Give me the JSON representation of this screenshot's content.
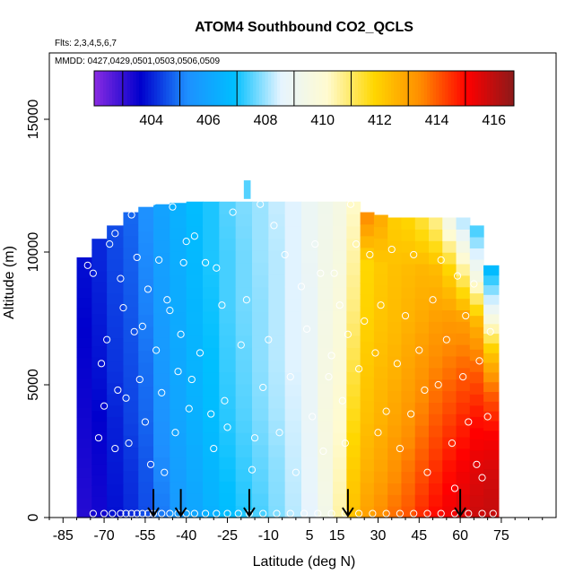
{
  "chart_data": {
    "type": "heatmap",
    "title": "ATOM4 Southbound CO2_QCLS",
    "subtitle_flights": "Flts: 2,3,4,5,6,7",
    "subtitle_dates": "MMDD: 0427,0429,0501,0503,0506,0509",
    "xlabel": "Latitude (deg N)",
    "ylabel": "Altitude (m)",
    "xlim": [
      -90,
      95
    ],
    "ylim": [
      0,
      17500
    ],
    "x_ticks": [
      -85,
      -70,
      -55,
      -40,
      -25,
      -10,
      5,
      15,
      30,
      45,
      60,
      75
    ],
    "x_tick_labels": [
      "-85",
      "-70",
      "-55",
      "-40",
      "-25",
      "-10",
      "5",
      "15",
      "30",
      "45",
      "60",
      "75"
    ],
    "y_ticks": [
      0,
      5000,
      10000,
      15000
    ],
    "y_tick_labels": [
      "0",
      "5000",
      "10000",
      "15000"
    ],
    "colorbar": {
      "range": [
        402,
        416.7
      ],
      "ticks": [
        404,
        406,
        408,
        410,
        412,
        414,
        416
      ],
      "tick_labels": [
        "404",
        "406",
        "408",
        "410",
        "412",
        "414",
        "416"
      ],
      "colors": [
        "#8a2be2",
        "#0000cd",
        "#1e90ff",
        "#00bfff",
        "#e6f4ff",
        "#fffbd0",
        "#ffd700",
        "#ff8c00",
        "#ff0000",
        "#8b1a1a"
      ]
    },
    "profile_markers_latitude": [
      -52,
      -42,
      -17,
      19,
      60
    ],
    "columns": [
      {
        "lat": -77,
        "top": 9800,
        "values": [
          403.2,
          403.3,
          403.4,
          403.5,
          403.6,
          403.7,
          403.8
        ]
      },
      {
        "lat": -72,
        "top": 10500,
        "values": [
          403.4,
          403.5,
          403.6,
          403.8,
          403.9,
          404.0,
          404.1
        ]
      },
      {
        "lat": -66,
        "top": 11000,
        "values": [
          403.8,
          403.9,
          404.0,
          404.2,
          404.3,
          404.4,
          404.5
        ]
      },
      {
        "lat": -60,
        "top": 11500,
        "values": [
          404.1,
          404.2,
          404.4,
          404.5,
          404.6,
          404.7,
          404.8
        ]
      },
      {
        "lat": -55,
        "top": 11700,
        "values": [
          404.5,
          404.6,
          404.8,
          404.9,
          405.1,
          405.2,
          405.3
        ]
      },
      {
        "lat": -49,
        "top": 11800,
        "values": [
          405.0,
          405.2,
          405.4,
          405.6,
          405.7,
          405.8,
          405.9
        ]
      },
      {
        "lat": -43,
        "top": 11850,
        "values": [
          405.6,
          405.8,
          406.0,
          406.1,
          406.2,
          406.3,
          406.4
        ]
      },
      {
        "lat": -37,
        "top": 11900,
        "values": [
          406.0,
          406.2,
          406.4,
          406.5,
          406.6,
          406.7,
          406.8
        ]
      },
      {
        "lat": -31,
        "top": 11900,
        "values": [
          406.4,
          406.6,
          406.8,
          406.9,
          407.0,
          407.1,
          407.1
        ]
      },
      {
        "lat": -25,
        "top": 11900,
        "values": [
          406.8,
          407.0,
          407.2,
          407.3,
          407.4,
          407.4,
          407.5
        ]
      },
      {
        "lat": -19,
        "top": 11900,
        "values": [
          407.1,
          407.3,
          407.5,
          407.6,
          407.7,
          407.7,
          407.8
        ]
      },
      {
        "lat": -13,
        "top": 11900,
        "values": [
          407.4,
          407.6,
          407.8,
          407.9,
          407.9,
          408.0,
          408.0
        ]
      },
      {
        "lat": -7,
        "top": 11900,
        "values": [
          407.8,
          407.9,
          408.1,
          408.2,
          408.2,
          408.2,
          408.3
        ]
      },
      {
        "lat": -1,
        "top": 11900,
        "values": [
          408.2,
          408.3,
          408.4,
          408.5,
          408.5,
          408.5,
          408.5
        ]
      },
      {
        "lat": 5,
        "top": 11900,
        "values": [
          408.6,
          408.7,
          408.8,
          408.8,
          408.8,
          408.9,
          408.9
        ]
      },
      {
        "lat": 11,
        "top": 11900,
        "values": [
          409.3,
          409.5,
          409.6,
          409.5,
          409.4,
          409.3,
          409.2
        ]
      },
      {
        "lat": 16,
        "top": 11900,
        "values": [
          410.5,
          410.3,
          410.1,
          409.9,
          409.8,
          409.6,
          409.5
        ]
      },
      {
        "lat": 21,
        "top": 11900,
        "values": [
          412.3,
          412.0,
          411.6,
          411.2,
          410.8,
          410.5,
          410.2
        ]
      },
      {
        "lat": 26,
        "top": 11500,
        "values": [
          413.0,
          412.6,
          412.3,
          412.1,
          411.9,
          411.8,
          413.5
        ]
      },
      {
        "lat": 31,
        "top": 11400,
        "values": [
          413.4,
          412.9,
          412.6,
          412.4,
          412.2,
          412.1,
          412.8
        ]
      },
      {
        "lat": 36,
        "top": 11300,
        "values": [
          413.8,
          413.3,
          412.9,
          412.6,
          412.4,
          412.3,
          412.0
        ]
      },
      {
        "lat": 41,
        "top": 11300,
        "values": [
          414.1,
          413.7,
          413.2,
          412.9,
          412.6,
          412.4,
          411.8
        ]
      },
      {
        "lat": 46,
        "top": 11300,
        "values": [
          414.6,
          414.1,
          413.6,
          413.2,
          412.8,
          412.5,
          411.3
        ]
      },
      {
        "lat": 51,
        "top": 11300,
        "values": [
          415.0,
          414.5,
          414.0,
          413.5,
          413.0,
          412.4,
          410.6
        ]
      },
      {
        "lat": 56,
        "top": 11300,
        "values": [
          415.3,
          414.9,
          414.3,
          413.7,
          413.1,
          411.8,
          409.2
        ]
      },
      {
        "lat": 61,
        "top": 11300,
        "values": [
          415.6,
          415.2,
          414.6,
          413.9,
          413.0,
          410.5,
          408.0
        ]
      },
      {
        "lat": 66,
        "top": 11000,
        "values": [
          415.8,
          415.5,
          414.9,
          414.0,
          412.6,
          409.4,
          407.2
        ]
      },
      {
        "lat": 71,
        "top": 9500,
        "values": [
          415.9,
          415.7,
          415.1,
          413.9,
          412.0,
          408.8,
          406.5
        ]
      }
    ],
    "observations": [
      [
        -76,
        9500
      ],
      [
        -74,
        9200
      ],
      [
        -72,
        3000
      ],
      [
        -71,
        5800
      ],
      [
        -70,
        4200
      ],
      [
        -69,
        6700
      ],
      [
        -68,
        10300
      ],
      [
        -66,
        10700
      ],
      [
        -66,
        2600
      ],
      [
        -65,
        4800
      ],
      [
        -64,
        9000
      ],
      [
        -63,
        7900
      ],
      [
        -62,
        4500
      ],
      [
        -61,
        2800
      ],
      [
        -60,
        11400
      ],
      [
        -59,
        7000
      ],
      [
        -58,
        9800
      ],
      [
        -57,
        5200
      ],
      [
        -56,
        7200
      ],
      [
        -55,
        3600
      ],
      [
        -54,
        8600
      ],
      [
        -53,
        2000
      ],
      [
        -52,
        11900
      ],
      [
        -51,
        6300
      ],
      [
        -50,
        9700
      ],
      [
        -49,
        4700
      ],
      [
        -48,
        1700
      ],
      [
        -47,
        8200
      ],
      [
        -46,
        7800
      ],
      [
        -45,
        11700
      ],
      [
        -44,
        3200
      ],
      [
        -43,
        5500
      ],
      [
        -42,
        6900
      ],
      [
        -41,
        9600
      ],
      [
        -40,
        10400
      ],
      [
        -39,
        4100
      ],
      [
        -38,
        5200
      ],
      [
        -37,
        10600
      ],
      [
        -35,
        6200
      ],
      [
        -33,
        9600
      ],
      [
        -31,
        3900
      ],
      [
        -30,
        2600
      ],
      [
        -29,
        9400
      ],
      [
        -27,
        8000
      ],
      [
        -26,
        4400
      ],
      [
        -25,
        3400
      ],
      [
        -23,
        11500
      ],
      [
        -20,
        6500
      ],
      [
        -18,
        8200
      ],
      [
        -16,
        1800
      ],
      [
        -15,
        3000
      ],
      [
        -13,
        11800
      ],
      [
        -12,
        4900
      ],
      [
        -10,
        6700
      ],
      [
        -8,
        11000
      ],
      [
        -6,
        3200
      ],
      [
        -4,
        9900
      ],
      [
        -2,
        5300
      ],
      [
        0,
        1700
      ],
      [
        2,
        8700
      ],
      [
        4,
        7100
      ],
      [
        6,
        3800
      ],
      [
        7,
        10300
      ],
      [
        9,
        9200
      ],
      [
        10,
        2500
      ],
      [
        12,
        5300
      ],
      [
        13,
        6100
      ],
      [
        14,
        9200
      ],
      [
        16,
        8000
      ],
      [
        17,
        4400
      ],
      [
        18,
        2800
      ],
      [
        19,
        6900
      ],
      [
        20,
        11800
      ],
      [
        22,
        10300
      ],
      [
        23,
        5600
      ],
      [
        25,
        7400
      ],
      [
        27,
        9900
      ],
      [
        29,
        6200
      ],
      [
        30,
        3200
      ],
      [
        31,
        8000
      ],
      [
        33,
        4000
      ],
      [
        35,
        10100
      ],
      [
        37,
        5800
      ],
      [
        38,
        2600
      ],
      [
        40,
        7600
      ],
      [
        42,
        3900
      ],
      [
        43,
        9900
      ],
      [
        45,
        6300
      ],
      [
        47,
        4800
      ],
      [
        48,
        1700
      ],
      [
        50,
        8200
      ],
      [
        52,
        5000
      ],
      [
        53,
        9700
      ],
      [
        55,
        6700
      ],
      [
        57,
        2800
      ],
      [
        58,
        1100
      ],
      [
        59,
        9100
      ],
      [
        61,
        5300
      ],
      [
        62,
        7600
      ],
      [
        63,
        3600
      ],
      [
        65,
        8800
      ],
      [
        66,
        2000
      ],
      [
        67,
        5900
      ],
      [
        68,
        1500
      ],
      [
        70,
        3800
      ],
      [
        71,
        7000
      ]
    ],
    "surface_observations_latitude": [
      -74,
      -70,
      -67,
      -64,
      -62,
      -60,
      -58,
      -56,
      -54,
      -52,
      -49,
      -46,
      -43,
      -40,
      -37,
      -33,
      -29,
      -25,
      -21,
      -17,
      -12,
      -7,
      -2,
      3,
      8,
      13,
      18,
      23,
      28,
      33,
      38,
      43,
      48,
      53,
      58,
      63,
      68,
      72
    ]
  }
}
